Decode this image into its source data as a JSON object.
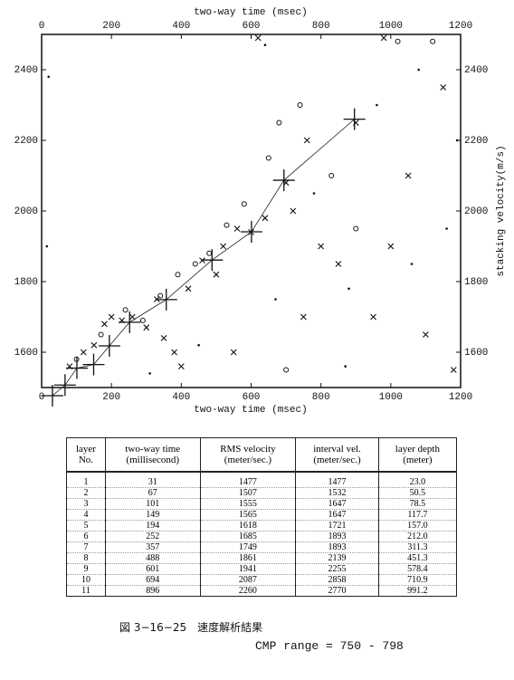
{
  "chart_data": {
    "type": "scatter",
    "xlabel": "two-way time (msec)",
    "ylabel": "stacking velocity(m/s)",
    "xlim": [
      0,
      1200
    ],
    "xticks": [
      0,
      200,
      400,
      600,
      800,
      1000,
      1200
    ],
    "ylim": [
      1500,
      2500
    ],
    "yticks": [
      1600,
      1800,
      2000,
      2200,
      2400
    ],
    "picks": {
      "x": [
        31,
        67,
        101,
        149,
        194,
        252,
        357,
        488,
        601,
        694,
        896
      ],
      "values": [
        1477,
        1507,
        1555,
        1565,
        1618,
        1685,
        1749,
        1861,
        1941,
        2087,
        2260
      ]
    },
    "series": [
      {
        "marker": "x",
        "x": [
          80,
          120,
          150,
          180,
          200,
          230,
          260,
          300,
          330,
          350,
          380,
          420,
          460,
          500,
          520,
          560,
          600,
          640,
          700,
          720,
          760,
          800,
          850,
          900,
          950,
          1000,
          1050,
          1100,
          1150,
          620,
          980,
          1180,
          400,
          550,
          750
        ],
        "values": [
          1560,
          1600,
          1620,
          1680,
          1700,
          1690,
          1700,
          1670,
          1750,
          1640,
          1600,
          1780,
          1860,
          1820,
          1900,
          1950,
          1940,
          1980,
          2080,
          2000,
          2200,
          1900,
          1850,
          2250,
          1700,
          1900,
          2100,
          1650,
          2350,
          2490,
          2490,
          1550,
          1560,
          1600,
          1700
        ]
      },
      {
        "marker": "o",
        "x": [
          100,
          170,
          240,
          290,
          340,
          390,
          440,
          480,
          530,
          580,
          650,
          680,
          740,
          830,
          900,
          1020,
          1120,
          700
        ],
        "values": [
          1580,
          1650,
          1720,
          1690,
          1760,
          1820,
          1850,
          1880,
          1960,
          2020,
          2150,
          2250,
          2300,
          2100,
          1950,
          2480,
          2480,
          1550
        ]
      },
      {
        "marker": "dot",
        "x": [
          20,
          15,
          310,
          450,
          670,
          780,
          880,
          960,
          1060,
          1160,
          1190,
          870,
          1080,
          640
        ],
        "values": [
          2380,
          1900,
          1540,
          1620,
          1750,
          2050,
          1780,
          2300,
          1850,
          1950,
          2200,
          1560,
          2400,
          2470
        ]
      }
    ]
  },
  "table": {
    "headers": [
      [
        "layer",
        "No."
      ],
      [
        "two-way time",
        "(millisecond)"
      ],
      [
        "RMS velocity",
        "(meter/sec.)"
      ],
      [
        "interval vel.",
        "(meter/sec.)"
      ],
      [
        "layer depth",
        "(meter)"
      ]
    ],
    "rows": [
      [
        "1",
        "31",
        "1477",
        "1477",
        "23.0"
      ],
      [
        "2",
        "67",
        "1507",
        "1532",
        "50.5"
      ],
      [
        "3",
        "101",
        "1555",
        "1647",
        "78.5"
      ],
      [
        "4",
        "149",
        "1565",
        "1647",
        "117.7"
      ],
      [
        "5",
        "194",
        "1618",
        "1721",
        "157.0"
      ],
      [
        "6",
        "252",
        "1685",
        "1893",
        "212.0"
      ],
      [
        "7",
        "357",
        "1749",
        "1893",
        "311.3"
      ],
      [
        "8",
        "488",
        "1861",
        "2139",
        "451.3"
      ],
      [
        "9",
        "601",
        "1941",
        "2255",
        "578.4"
      ],
      [
        "10",
        "694",
        "2087",
        "2858",
        "710.9"
      ],
      [
        "11",
        "896",
        "2260",
        "2770",
        "991.2"
      ]
    ]
  },
  "caption": "図 3−16−25　速度解析結果",
  "cmp_range": "CMP range = 750 - 798"
}
